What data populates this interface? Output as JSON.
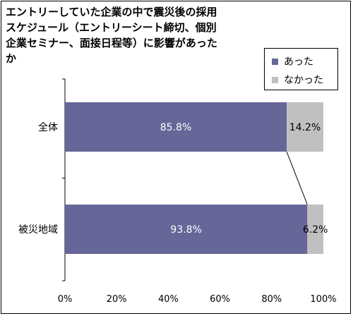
{
  "chart_data": {
    "type": "bar",
    "orientation": "horizontal",
    "stacked": true,
    "title": "エントリーしていた企業の中で震災後の採用スケジュール（エントリーシート締切、個別企業セミナー、面接日程等）に影響があったか",
    "categories": [
      "全体",
      "被災地域"
    ],
    "series": [
      {
        "name": "あった",
        "values": [
          85.8,
          93.8
        ],
        "color": "#666699"
      },
      {
        "name": "なかった",
        "values": [
          14.2,
          6.2
        ],
        "color": "#c0c0c0"
      }
    ],
    "data_labels": [
      [
        "85.8%",
        "93.8%"
      ],
      [
        "14.2%",
        "6.2%"
      ]
    ],
    "xlim": [
      0,
      100
    ],
    "xticks": [
      "0%",
      "20%",
      "40%",
      "60%",
      "80%",
      "100%"
    ],
    "xlabel": "",
    "ylabel": "",
    "grid": false,
    "legend_position": "top-right",
    "series_lines": true
  }
}
